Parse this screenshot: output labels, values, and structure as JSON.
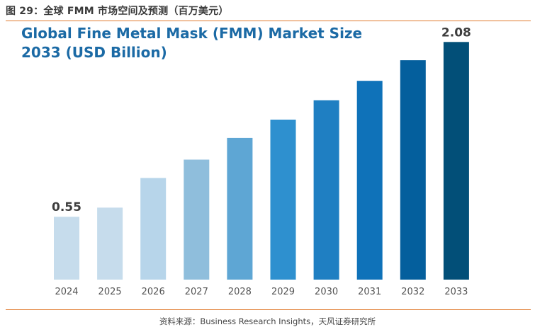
{
  "figure_caption": "图 29：全球 FMM 市场空间及预测（百万美元）",
  "source_note": "资料来源：Business Research Insights，天风证券研究所",
  "chart_data": {
    "type": "bar",
    "title_line1": "Global Fine Metal Mask (FMM) Market Size",
    "title_line2": "2033 (USD Billion)",
    "xlabel": "",
    "ylabel": "",
    "categories": [
      "2024",
      "2025",
      "2026",
      "2027",
      "2028",
      "2029",
      "2030",
      "2031",
      "2032",
      "2033"
    ],
    "values": [
      0.55,
      0.63,
      0.89,
      1.05,
      1.24,
      1.4,
      1.57,
      1.74,
      1.92,
      2.08
    ],
    "value_labels": {
      "2024": "0.55",
      "2033": "2.08"
    },
    "bar_colors": [
      "#c6dcec",
      "#c6dcec",
      "#b7d5ea",
      "#8fbedc",
      "#5ea6d4",
      "#2e90cf",
      "#1f7fc2",
      "#0f72b9",
      "#045f9d",
      "#024f78"
    ],
    "ylim": [
      0,
      2.15
    ],
    "grid": false,
    "legend": "none"
  }
}
